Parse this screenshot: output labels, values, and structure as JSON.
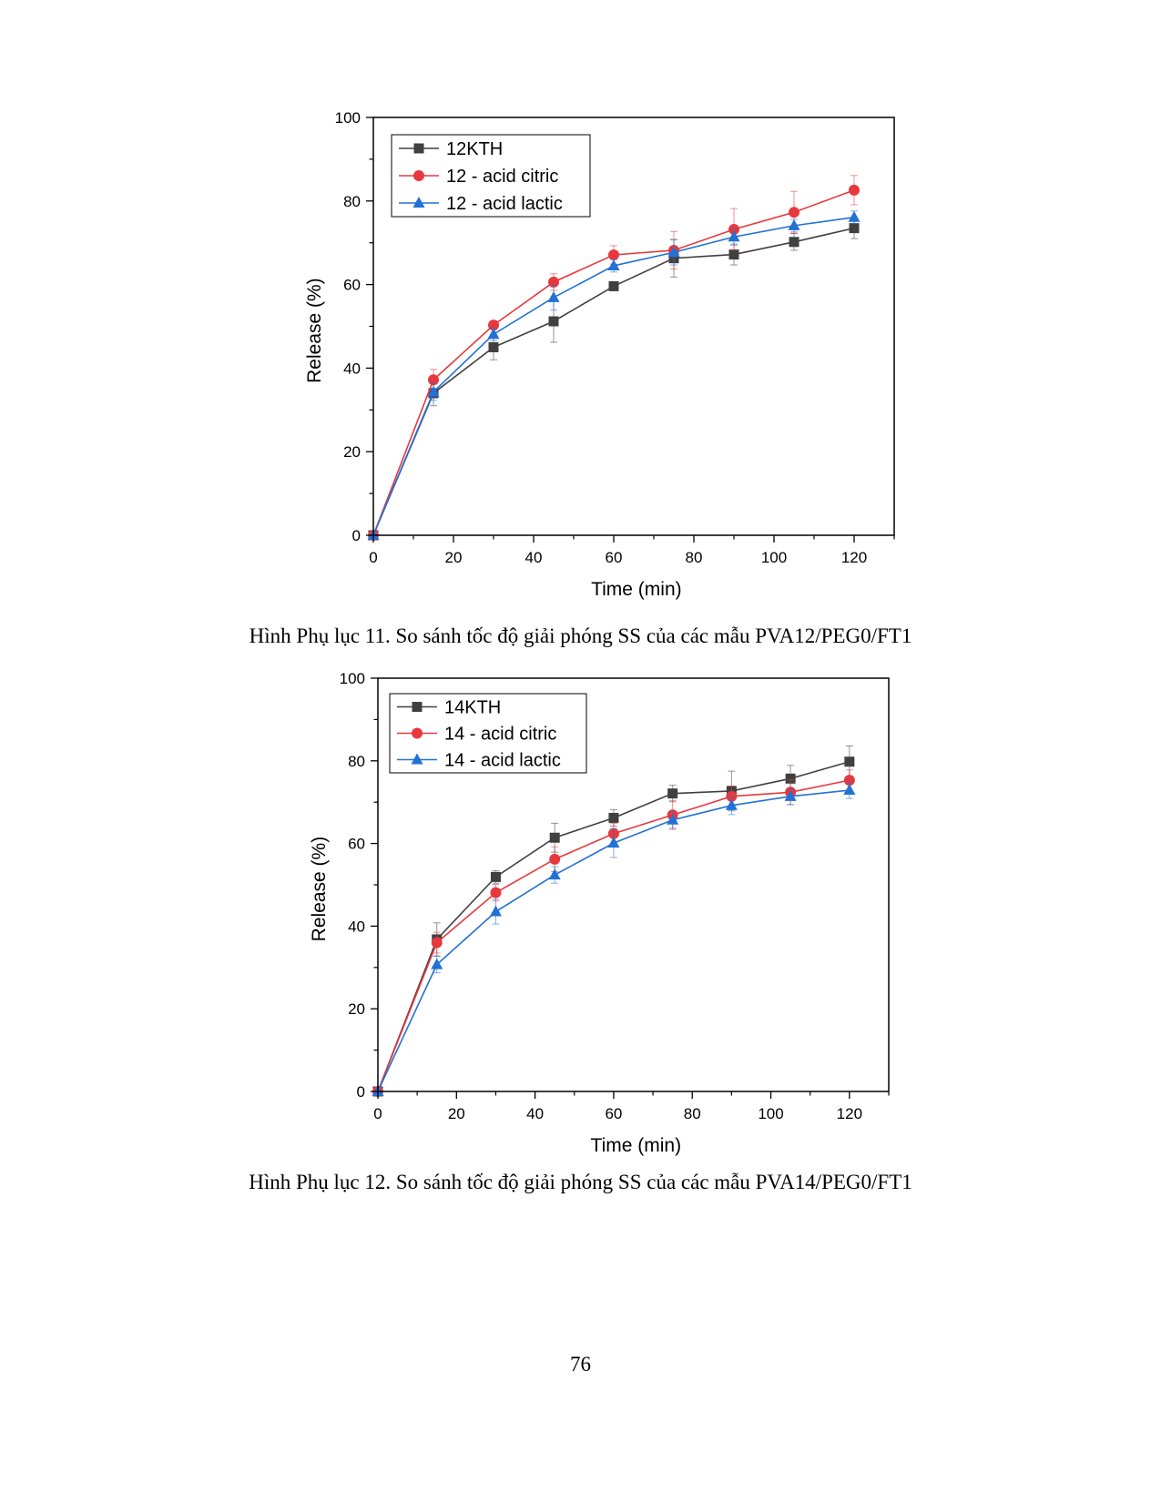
{
  "chart_data": [
    {
      "type": "line",
      "title": "",
      "xlabel": "Time (min)",
      "ylabel": "Release (%)",
      "xlim": [
        0,
        130
      ],
      "ylim": [
        0,
        100
      ],
      "xticks": [
        0,
        20,
        40,
        60,
        80,
        100,
        120
      ],
      "yticks": [
        0,
        20,
        40,
        60,
        80,
        100
      ],
      "grid": false,
      "legend_position": "top-left",
      "x": [
        0,
        15,
        30,
        45,
        60,
        75,
        90,
        105,
        120
      ],
      "series": [
        {
          "name": "12KTH",
          "color": "#404040",
          "marker": "square",
          "values": [
            0,
            34,
            45,
            51.2,
            59.6,
            66.3,
            67.2,
            70.2,
            73.5
          ],
          "errors": [
            0,
            3,
            3,
            5,
            1,
            4.5,
            2.5,
            2,
            2.5
          ]
        },
        {
          "name": "12 - acid citric",
          "color": "#e8383d",
          "marker": "circle",
          "values": [
            0,
            37.2,
            50.3,
            60.6,
            67.1,
            68.2,
            73.2,
            77.3,
            82.6
          ],
          "errors": [
            0,
            2.5,
            1,
            2,
            2.2,
            4.5,
            5,
            5,
            3.5
          ]
        },
        {
          "name": "12 - acid lactic",
          "color": "#2271d4",
          "marker": "triangle",
          "values": [
            0,
            34.3,
            48.1,
            56.9,
            64.5,
            67.7,
            71.4,
            74.1,
            76.1
          ],
          "errors": [
            0,
            2,
            1.5,
            3,
            1.5,
            3,
            2,
            1.5,
            1.5
          ]
        }
      ]
    },
    {
      "type": "line",
      "title": "",
      "xlabel": "Time (min)",
      "ylabel": "Release (%)",
      "xlim": [
        0,
        130
      ],
      "ylim": [
        0,
        100
      ],
      "xticks": [
        0,
        20,
        40,
        60,
        80,
        100,
        120
      ],
      "yticks": [
        0,
        20,
        40,
        60,
        80,
        100
      ],
      "grid": false,
      "legend_position": "top-left",
      "x": [
        0,
        15,
        30,
        45,
        60,
        75,
        90,
        105,
        120
      ],
      "series": [
        {
          "name": "14KTH",
          "color": "#404040",
          "marker": "square",
          "values": [
            0,
            36.8,
            51.9,
            61.4,
            66.2,
            72.1,
            72.7,
            75.7,
            79.8
          ],
          "errors": [
            0,
            4,
            1.5,
            3.5,
            2,
            2,
            4.8,
            3.2,
            3.8
          ]
        },
        {
          "name": "14 - acid citric",
          "color": "#e8383d",
          "marker": "circle",
          "values": [
            0,
            36,
            48.1,
            56.2,
            62.4,
            66.9,
            71.4,
            72.4,
            75.3
          ],
          "errors": [
            0,
            2.5,
            2,
            3,
            2.5,
            3.5,
            2.5,
            3,
            2.5
          ]
        },
        {
          "name": "14 - acid lactic",
          "color": "#2271d4",
          "marker": "triangle",
          "values": [
            0,
            30.7,
            43.5,
            52.4,
            60.1,
            65.7,
            69.2,
            71.4,
            72.9
          ],
          "errors": [
            0,
            2,
            3,
            2,
            3.5,
            2,
            2.2,
            2,
            2
          ]
        }
      ]
    }
  ],
  "captions": [
    "Hình Phụ lục 11. So sánh tốc độ giải phóng SS của các mẫu PVA12/PEG0/FT1",
    "Hình Phụ lục 12. So sánh tốc độ giải phóng SS của các mẫu PVA14/PEG0/FT1"
  ],
  "page_number": "76"
}
